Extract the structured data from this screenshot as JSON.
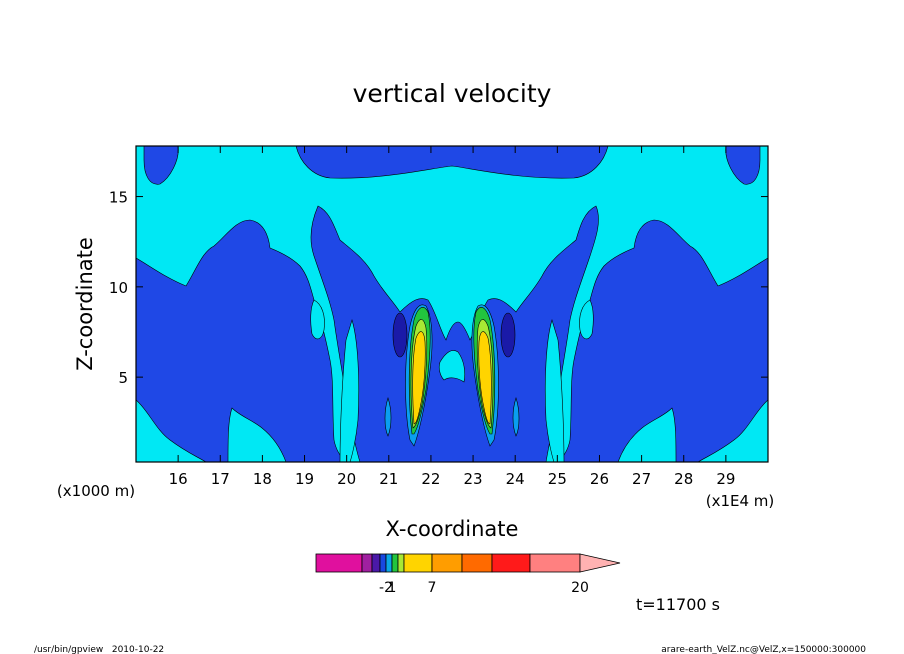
{
  "chart_data": {
    "type": "heatmap",
    "title": "vertical velocity",
    "xlabel": "X-coordinate",
    "ylabel": "Z-coordinate",
    "x_units_label": "(x1E4 m)",
    "y_units_label": "(x1000 m)",
    "xlim": [
      15.0,
      30.0
    ],
    "ylim": [
      0.3,
      17.8
    ],
    "x_ticks": [
      16,
      17,
      18,
      19,
      20,
      21,
      22,
      23,
      24,
      25,
      26,
      27,
      28,
      29
    ],
    "y_ticks": [
      5,
      10,
      15
    ],
    "colorbar": {
      "colors": [
        "#e0109e",
        "#a020a0",
        "#4a19a8",
        "#1848e0",
        "#0aa6e6",
        "#22c53e",
        "#a8e834",
        "#ffd400",
        "#ff9d00",
        "#ff6a00",
        "#ff1a1a",
        "#ff8080",
        "#ffb2b2"
      ],
      "tick_labels": [
        "-2",
        "1",
        "7",
        "20"
      ],
      "tick_bounds": [
        4,
        5,
        8,
        12
      ]
    },
    "background_level_color": "#00e8f4",
    "features": [
      {
        "label": "updraft-left",
        "x": 21.6,
        "z": 5.5,
        "level_color": "#ffd400"
      },
      {
        "label": "updraft-right",
        "x": 23.4,
        "z": 5.5,
        "level_color": "#ffd400"
      }
    ],
    "time_label": "t=11700 s"
  },
  "footer": {
    "left": "/usr/bin/gpview   2010-10-22",
    "right": "arare-earth_VelZ.nc@VelZ,x=150000:300000"
  },
  "colors": {
    "cyan": "#00e8f4",
    "blue": "#1f48e6",
    "navy": "#1a1aa8",
    "lightblue": "#0a9ef0",
    "green": "#22c53e",
    "yellowgreen": "#a8e834",
    "yellow": "#ffd400",
    "orange": "#ff9d00"
  }
}
